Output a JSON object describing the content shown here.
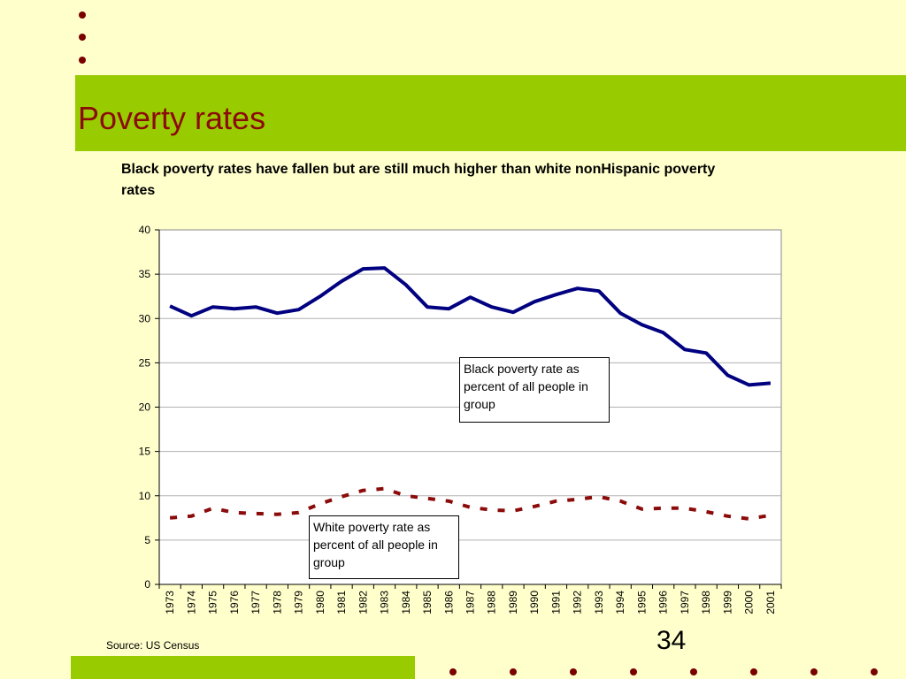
{
  "slide": {
    "title": "Poverty rates",
    "subtitle": "Black poverty rates have fallen but are still much higher than white nonHispanic poverty rates",
    "source": "Source: US Census",
    "page_number": "34"
  },
  "colors": {
    "background": "#ffffcc",
    "band": "#99cc00",
    "title": "#8b0a0a",
    "bullet": "#7a0000",
    "black_series": "#000080",
    "white_series": "#8b0a0a"
  },
  "chart_data": {
    "type": "line",
    "title": "",
    "xlabel": "",
    "ylabel": "",
    "ylim": [
      0,
      40
    ],
    "yticks": [
      0,
      5,
      10,
      15,
      20,
      25,
      30,
      35,
      40
    ],
    "grid": true,
    "categories": [
      "1973",
      "1974",
      "1975",
      "1976",
      "1977",
      "1978",
      "1979",
      "1980",
      "1981",
      "1982",
      "1983",
      "1984",
      "1985",
      "1986",
      "1987",
      "1988",
      "1989",
      "1990",
      "1991",
      "1992",
      "1993",
      "1994",
      "1995",
      "1996",
      "1997",
      "1998",
      "1999",
      "2000",
      "2001"
    ],
    "series": [
      {
        "name": "Black poverty rate as percent of all people in group",
        "style": "solid",
        "values": [
          31.4,
          30.3,
          31.3,
          31.1,
          31.3,
          30.6,
          31.0,
          32.5,
          34.2,
          35.6,
          35.7,
          33.8,
          31.3,
          31.1,
          32.4,
          31.3,
          30.7,
          31.9,
          32.7,
          33.4,
          33.1,
          30.6,
          29.3,
          28.4,
          26.5,
          26.1,
          23.6,
          22.5,
          22.7
        ]
      },
      {
        "name": "White poverty rate as percent of all people in group",
        "style": "dashed",
        "values": [
          7.5,
          7.7,
          8.6,
          8.1,
          8.0,
          7.9,
          8.1,
          9.1,
          9.9,
          10.6,
          10.8,
          10.0,
          9.7,
          9.4,
          8.7,
          8.4,
          8.3,
          8.8,
          9.4,
          9.6,
          9.9,
          9.4,
          8.5,
          8.6,
          8.6,
          8.2,
          7.7,
          7.4,
          7.8
        ]
      }
    ]
  }
}
